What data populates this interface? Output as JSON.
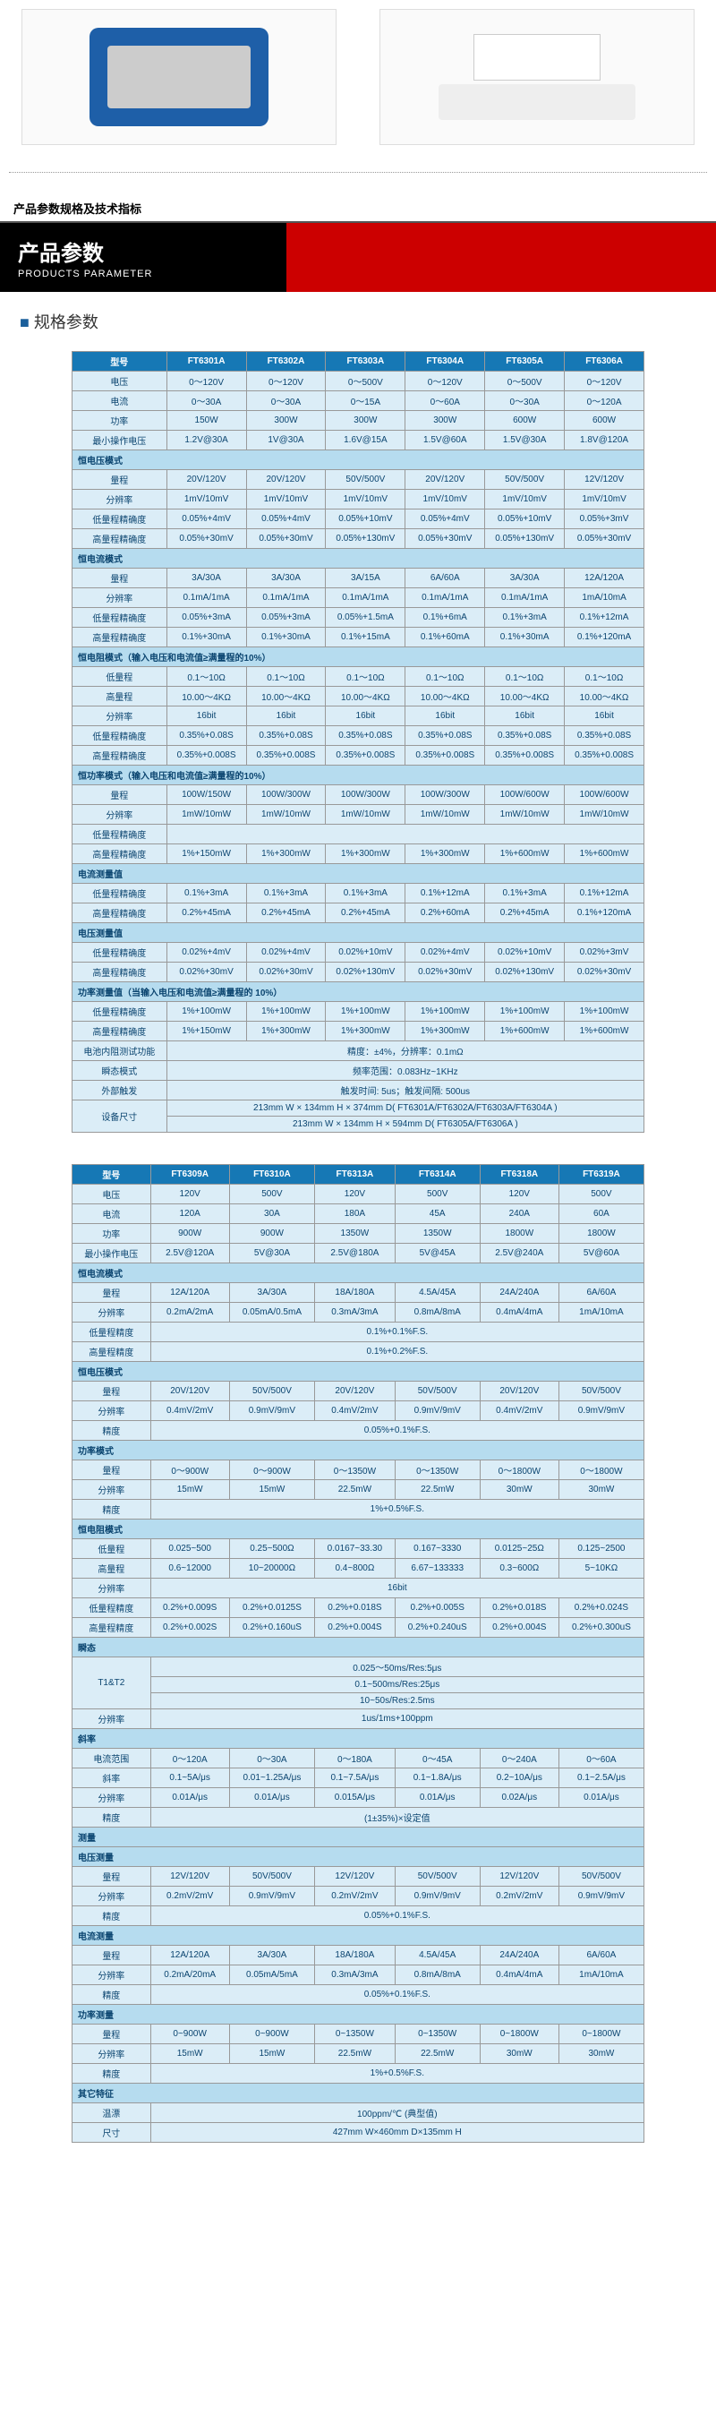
{
  "sectionLabel": "产品参数规格及技术指标",
  "banner": {
    "zh": "产品参数",
    "en": "PRODUCTS PARAMETER"
  },
  "specTitle": "规格参数",
  "colors": {
    "hdrBg": "#1678b5",
    "hdrFg": "#ffffff",
    "cellBg": "#dbedf7",
    "cellFg": "#0b4570",
    "sectBg": "#b6dcef",
    "accent": "#c00"
  },
  "t1": {
    "headers": [
      "型号",
      "FT6301A",
      "FT6302A",
      "FT6303A",
      "FT6304A",
      "FT6305A",
      "FT6306A"
    ],
    "rows": [
      [
        "电压",
        "0～120V",
        "0～120V",
        "0～500V",
        "0～120V",
        "0～500V",
        "0～120V"
      ],
      [
        "电流",
        "0～30A",
        "0～30A",
        "0～15A",
        "0～60A",
        "0～30A",
        "0～120A"
      ],
      [
        "功率",
        "150W",
        "300W",
        "300W",
        "300W",
        "600W",
        "600W"
      ],
      [
        "最小操作电压",
        "1.2V@30A",
        "1V@30A",
        "1.6V@15A",
        "1.5V@60A",
        "1.5V@30A",
        "1.8V@120A"
      ]
    ],
    "sect1": "恒电压模式",
    "rows2": [
      [
        "量程",
        "20V/120V",
        "20V/120V",
        "50V/500V",
        "20V/120V",
        "50V/500V",
        "12V/120V"
      ],
      [
        "分辨率",
        "1mV/10mV",
        "1mV/10mV",
        "1mV/10mV",
        "1mV/10mV",
        "1mV/10mV",
        "1mV/10mV"
      ],
      [
        "低量程精确度",
        "0.05%+4mV",
        "0.05%+4mV",
        "0.05%+10mV",
        "0.05%+4mV",
        "0.05%+10mV",
        "0.05%+3mV"
      ],
      [
        "高量程精确度",
        "0.05%+30mV",
        "0.05%+30mV",
        "0.05%+130mV",
        "0.05%+30mV",
        "0.05%+130mV",
        "0.05%+30mV"
      ]
    ],
    "sect2": "恒电流模式",
    "rows3": [
      [
        "量程",
        "3A/30A",
        "3A/30A",
        "3A/15A",
        "6A/60A",
        "3A/30A",
        "12A/120A"
      ],
      [
        "分辨率",
        "0.1mA/1mA",
        "0.1mA/1mA",
        "0.1mA/1mA",
        "0.1mA/1mA",
        "0.1mA/1mA",
        "1mA/10mA"
      ],
      [
        "低量程精确度",
        "0.05%+3mA",
        "0.05%+3mA",
        "0.05%+1.5mA",
        "0.1%+6mA",
        "0.1%+3mA",
        "0.1%+12mA"
      ],
      [
        "高量程精确度",
        "0.1%+30mA",
        "0.1%+30mA",
        "0.1%+15mA",
        "0.1%+60mA",
        "0.1%+30mA",
        "0.1%+120mA"
      ]
    ],
    "sect3": "恒电阻模式（输入电压和电流值≥满量程的10%）",
    "rows4": [
      [
        "低量程",
        "0.1～10Ω",
        "0.1～10Ω",
        "0.1～10Ω",
        "0.1～10Ω",
        "0.1～10Ω",
        "0.1～10Ω"
      ],
      [
        "高量程",
        "10.00～4KΩ",
        "10.00～4KΩ",
        "10.00～4KΩ",
        "10.00～4KΩ",
        "10.00～4KΩ",
        "10.00～4KΩ"
      ],
      [
        "分辨率",
        "16bit",
        "16bit",
        "16bit",
        "16bit",
        "16bit",
        "16bit"
      ],
      [
        "低量程精确度",
        "0.35%+0.08S",
        "0.35%+0.08S",
        "0.35%+0.08S",
        "0.35%+0.08S",
        "0.35%+0.08S",
        "0.35%+0.08S"
      ],
      [
        "高量程精确度",
        "0.35%+0.008S",
        "0.35%+0.008S",
        "0.35%+0.008S",
        "0.35%+0.008S",
        "0.35%+0.008S",
        "0.35%+0.008S"
      ]
    ],
    "sect4": "恒功率模式（输入电压和电流值≥满量程的10%）",
    "rows5": [
      [
        "量程",
        "100W/150W",
        "100W/300W",
        "100W/300W",
        "100W/300W",
        "100W/600W",
        "100W/600W"
      ],
      [
        "分辨率",
        "1mW/10mW",
        "1mW/10mW",
        "1mW/10mW",
        "1mW/10mW",
        "1mW/10mW",
        "1mW/10mW"
      ],
      [
        "低量程精确度"
      ],
      [
        "高量程精确度",
        "1%+150mW",
        "1%+300mW",
        "1%+300mW",
        "1%+300mW",
        "1%+600mW",
        "1%+600mW"
      ]
    ],
    "sect5": "电流测量值",
    "rows6": [
      [
        "低量程精确度",
        "0.1%+3mA",
        "0.1%+3mA",
        "0.1%+3mA",
        "0.1%+12mA",
        "0.1%+3mA",
        "0.1%+12mA"
      ],
      [
        "高量程精确度",
        "0.2%+45mA",
        "0.2%+45mA",
        "0.2%+45mA",
        "0.2%+60mA",
        "0.2%+45mA",
        "0.1%+120mA"
      ]
    ],
    "sect6": "电压测量值",
    "rows7": [
      [
        "低量程精确度",
        "0.02%+4mV",
        "0.02%+4mV",
        "0.02%+10mV",
        "0.02%+4mV",
        "0.02%+10mV",
        "0.02%+3mV"
      ],
      [
        "高量程精确度",
        "0.02%+30mV",
        "0.02%+30mV",
        "0.02%+130mV",
        "0.02%+30mV",
        "0.02%+130mV",
        "0.02%+30mV"
      ]
    ],
    "sect7": "功率测量值（当输入电压和电流值≥满量程的 10%）",
    "rows8": [
      [
        "低量程精确度",
        "1%+100mW",
        "1%+100mW",
        "1%+100mW",
        "1%+100mW",
        "1%+100mW",
        "1%+100mW"
      ],
      [
        "高量程精确度",
        "1%+150mW",
        "1%+300mW",
        "1%+300mW",
        "1%+300mW",
        "1%+600mW",
        "1%+600mW"
      ],
      [
        "电池内阻测试功能",
        "精度：±4%，分辨率：0.1mΩ"
      ],
      [
        "瞬态模式",
        "频率范围：0.083Hz~1KHz"
      ],
      [
        "外部触发",
        "触发时间: 5us；触发间隔: 500us"
      ],
      [
        "设备尺寸",
        "213mm W × 134mm H × 374mm D( FT6301A/FT6302A/FT6303A/FT6304A )",
        "213mm W × 134mm H × 594mm D( FT6305A/FT6306A )"
      ]
    ]
  },
  "t2": {
    "headers": [
      "型号",
      "FT6309A",
      "FT6310A",
      "FT6313A",
      "FT6314A",
      "FT6318A",
      "FT6319A"
    ],
    "rows": [
      [
        "电压",
        "120V",
        "500V",
        "120V",
        "500V",
        "120V",
        "500V"
      ],
      [
        "电流",
        "120A",
        "30A",
        "180A",
        "45A",
        "240A",
        "60A"
      ],
      [
        "功率",
        "900W",
        "900W",
        "1350W",
        "1350W",
        "1800W",
        "1800W"
      ],
      [
        "最小操作电压",
        "2.5V@120A",
        "5V@30A",
        "2.5V@180A",
        "5V@45A",
        "2.5V@240A",
        "5V@60A"
      ]
    ],
    "sect1": "恒电流模式",
    "rows2": [
      [
        "量程",
        "12A/120A",
        "3A/30A",
        "18A/180A",
        "4.5A/45A",
        "24A/240A",
        "6A/60A"
      ],
      [
        "分辨率",
        "0.2mA/2mA",
        "0.05mA/0.5mA",
        "0.3mA/3mA",
        "0.8mA/8mA",
        "0.4mA/4mA",
        "1mA/10mA"
      ],
      [
        "低量程精度",
        "0.1%+0.1%F.S."
      ],
      [
        "高量程精度",
        "0.1%+0.2%F.S."
      ]
    ],
    "sect2": "恒电压模式",
    "rows3": [
      [
        "量程",
        "20V/120V",
        "50V/500V",
        "20V/120V",
        "50V/500V",
        "20V/120V",
        "50V/500V"
      ],
      [
        "分辨率",
        "0.4mV/2mV",
        "0.9mV/9mV",
        "0.4mV/2mV",
        "0.9mV/9mV",
        "0.4mV/2mV",
        "0.9mV/9mV"
      ],
      [
        "精度",
        "0.05%+0.1%F.S."
      ]
    ],
    "sect3": "功率模式",
    "rows4": [
      [
        "量程",
        "0～900W",
        "0～900W",
        "0～1350W",
        "0～1350W",
        "0～1800W",
        "0～1800W"
      ],
      [
        "分辨率",
        "15mW",
        "15mW",
        "22.5mW",
        "22.5mW",
        "30mW",
        "30mW"
      ],
      [
        "精度",
        "1%+0.5%F.S."
      ]
    ],
    "sect4": "恒电阻模式",
    "rows5": [
      [
        "低量程",
        "0.025~500",
        "0.25~500Ω",
        "0.0167~33.30",
        "0.167~3330",
        "0.0125~25Ω",
        "0.125~2500"
      ],
      [
        "高量程",
        "0.6~12000",
        "10~20000Ω",
        "0.4~800Ω",
        "6.67~133333",
        "0.3~600Ω",
        "5~10KΩ"
      ],
      [
        "分辨率",
        "16bit"
      ],
      [
        "低量程精度",
        "0.2%+0.009S",
        "0.2%+0.0125S",
        "0.2%+0.018S",
        "0.2%+0.005S",
        "0.2%+0.018S",
        "0.2%+0.024S"
      ],
      [
        "高量程精度",
        "0.2%+0.002S",
        "0.2%+0.160uS",
        "0.2%+0.004S",
        "0.2%+0.240uS",
        "0.2%+0.004S",
        "0.2%+0.300uS"
      ]
    ],
    "sect5": "瞬态",
    "rows6": [
      [
        "T1&T2",
        "0.025～50ms/Res:5μs",
        "0.1~500ms/Res:25μs",
        "10~50s/Res:2.5ms"
      ],
      [
        "分辨率",
        "1us/1ms+100ppm"
      ]
    ],
    "sect6": "斜率",
    "rows7": [
      [
        "电流范围",
        "0～120A",
        "0～30A",
        "0～180A",
        "0～45A",
        "0～240A",
        "0～60A"
      ],
      [
        "斜率",
        "0.1~5A/μs",
        "0.01~1.25A/μs",
        "0.1~7.5A/μs",
        "0.1~1.8A/μs",
        "0.2~10A/μs",
        "0.1~2.5A/μs"
      ],
      [
        "分辨率",
        "0.01A/μs",
        "0.01A/μs",
        "0.015A/μs",
        "0.01A/μs",
        "0.02A/μs",
        "0.01A/μs"
      ],
      [
        "精度",
        "(1±35%)×设定值"
      ]
    ],
    "sect7": "测量",
    "sect7sub": "电压测量",
    "rows8": [
      [
        "量程",
        "12V/120V",
        "50V/500V",
        "12V/120V",
        "50V/500V",
        "12V/120V",
        "50V/500V"
      ],
      [
        "分辨率",
        "0.2mV/2mV",
        "0.9mV/9mV",
        "0.2mV/2mV",
        "0.9mV/9mV",
        "0.2mV/2mV",
        "0.9mV/9mV"
      ],
      [
        "精度",
        "0.05%+0.1%F.S."
      ]
    ],
    "sect8sub": "电流测量",
    "rows9": [
      [
        "量程",
        "12A/120A",
        "3A/30A",
        "18A/180A",
        "4.5A/45A",
        "24A/240A",
        "6A/60A"
      ],
      [
        "分辨率",
        "0.2mA/20mA",
        "0.05mA/5mA",
        "0.3mA/3mA",
        "0.8mA/8mA",
        "0.4mA/4mA",
        "1mA/10mA"
      ],
      [
        "精度",
        "0.05%+0.1%F.S."
      ]
    ],
    "sect9sub": "功率测量",
    "rows10": [
      [
        "量程",
        "0~900W",
        "0~900W",
        "0~1350W",
        "0~1350W",
        "0~1800W",
        "0~1800W"
      ],
      [
        "分辨率",
        "15mW",
        "15mW",
        "22.5mW",
        "22.5mW",
        "30mW",
        "30mW"
      ],
      [
        "精度",
        "1%+0.5%F.S."
      ]
    ],
    "sect10": "其它特征",
    "rows11": [
      [
        "温漂",
        "100ppm/℃ (典型值)"
      ],
      [
        "尺寸",
        "427mm W×460mm D×135mm H"
      ]
    ]
  }
}
